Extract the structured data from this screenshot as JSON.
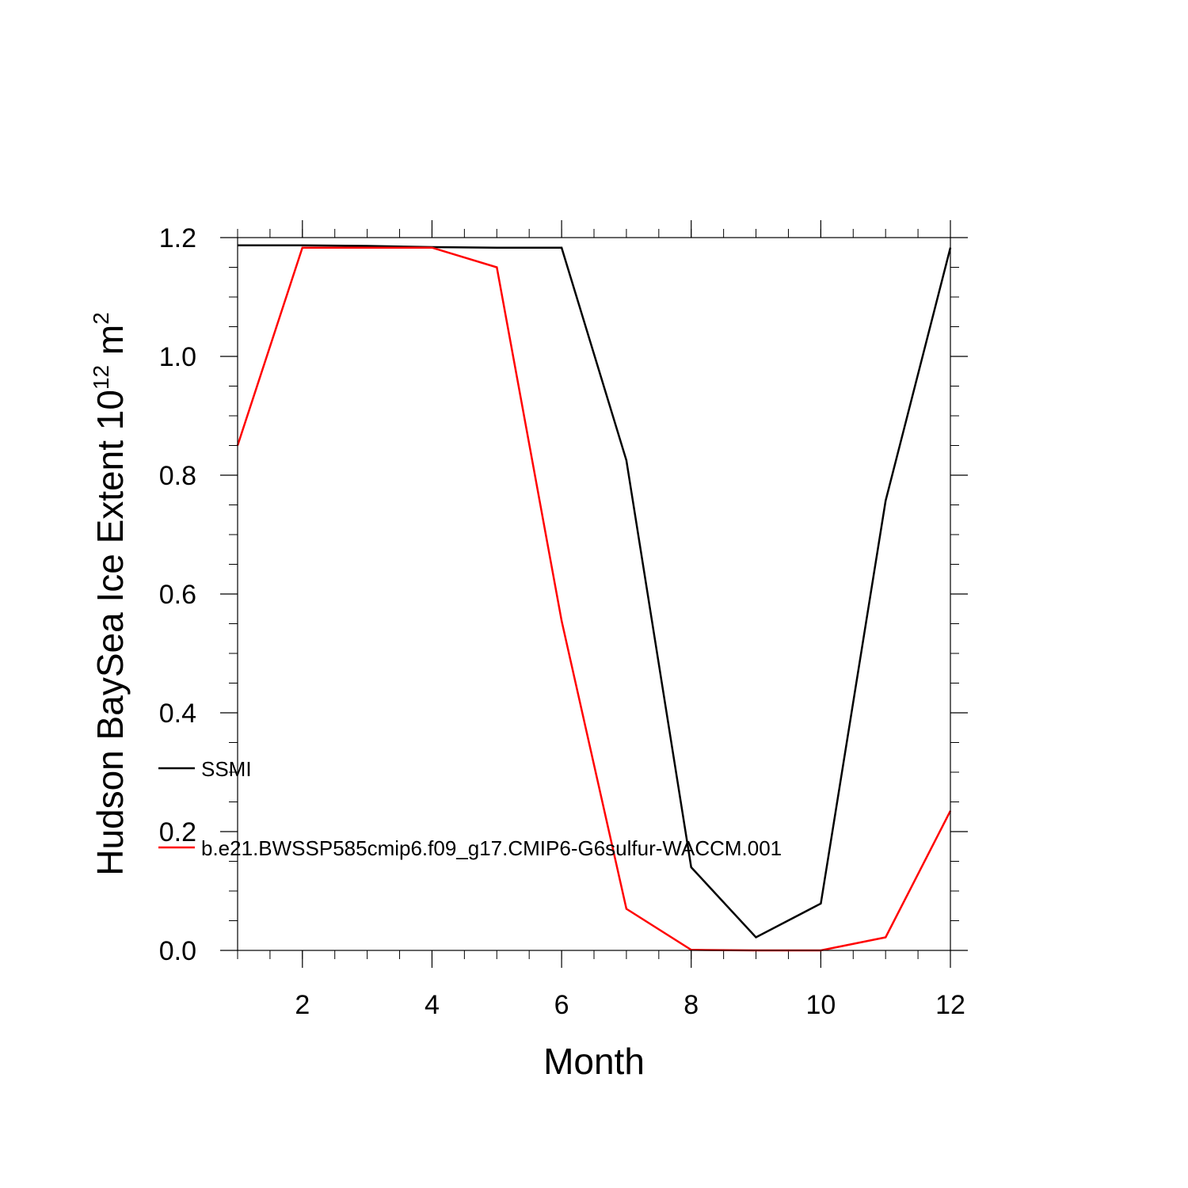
{
  "chart_data": {
    "type": "line",
    "xlabel": "Month",
    "ylabel": "Hudson BaySea Ice Extent 10",
    "ylabel_sup": "12",
    "ylabel_unit": "m",
    "ylabel_unit_sup": "2",
    "xlim": [
      1,
      12
    ],
    "ylim": [
      0,
      1.2
    ],
    "x_ticks": [
      2,
      4,
      6,
      8,
      10,
      12
    ],
    "x_tick_labels": [
      "2",
      "4",
      "6",
      "8",
      "10",
      "12"
    ],
    "y_ticks": [
      0,
      0.2,
      0.4,
      0.6,
      0.8,
      1.0,
      1.2
    ],
    "y_tick_labels": [
      "0.0",
      "0.2",
      "0.4",
      "0.6",
      "0.8",
      "1.0",
      "1.2"
    ],
    "x": [
      1,
      2,
      3,
      4,
      5,
      6,
      7,
      8,
      9,
      10,
      11,
      12
    ],
    "series": [
      {
        "name": "SSMI",
        "color": "#000000",
        "values": [
          1.187,
          1.187,
          1.186,
          1.184,
          1.183,
          1.183,
          0.825,
          0.14,
          0.022,
          0.079,
          0.757,
          1.183
        ]
      },
      {
        "name": "b.e21.BWSSP585cmip6.f09_g17.CMIP6-G6sulfur-WACCM.001",
        "color": "#ff0000",
        "values": [
          0.85,
          1.183,
          1.183,
          1.183,
          1.15,
          0.555,
          0.07,
          0.001,
          0.0,
          0.0,
          0.022,
          0.235
        ]
      }
    ],
    "legend_placement": "lower-left inside plot",
    "grid": false
  }
}
